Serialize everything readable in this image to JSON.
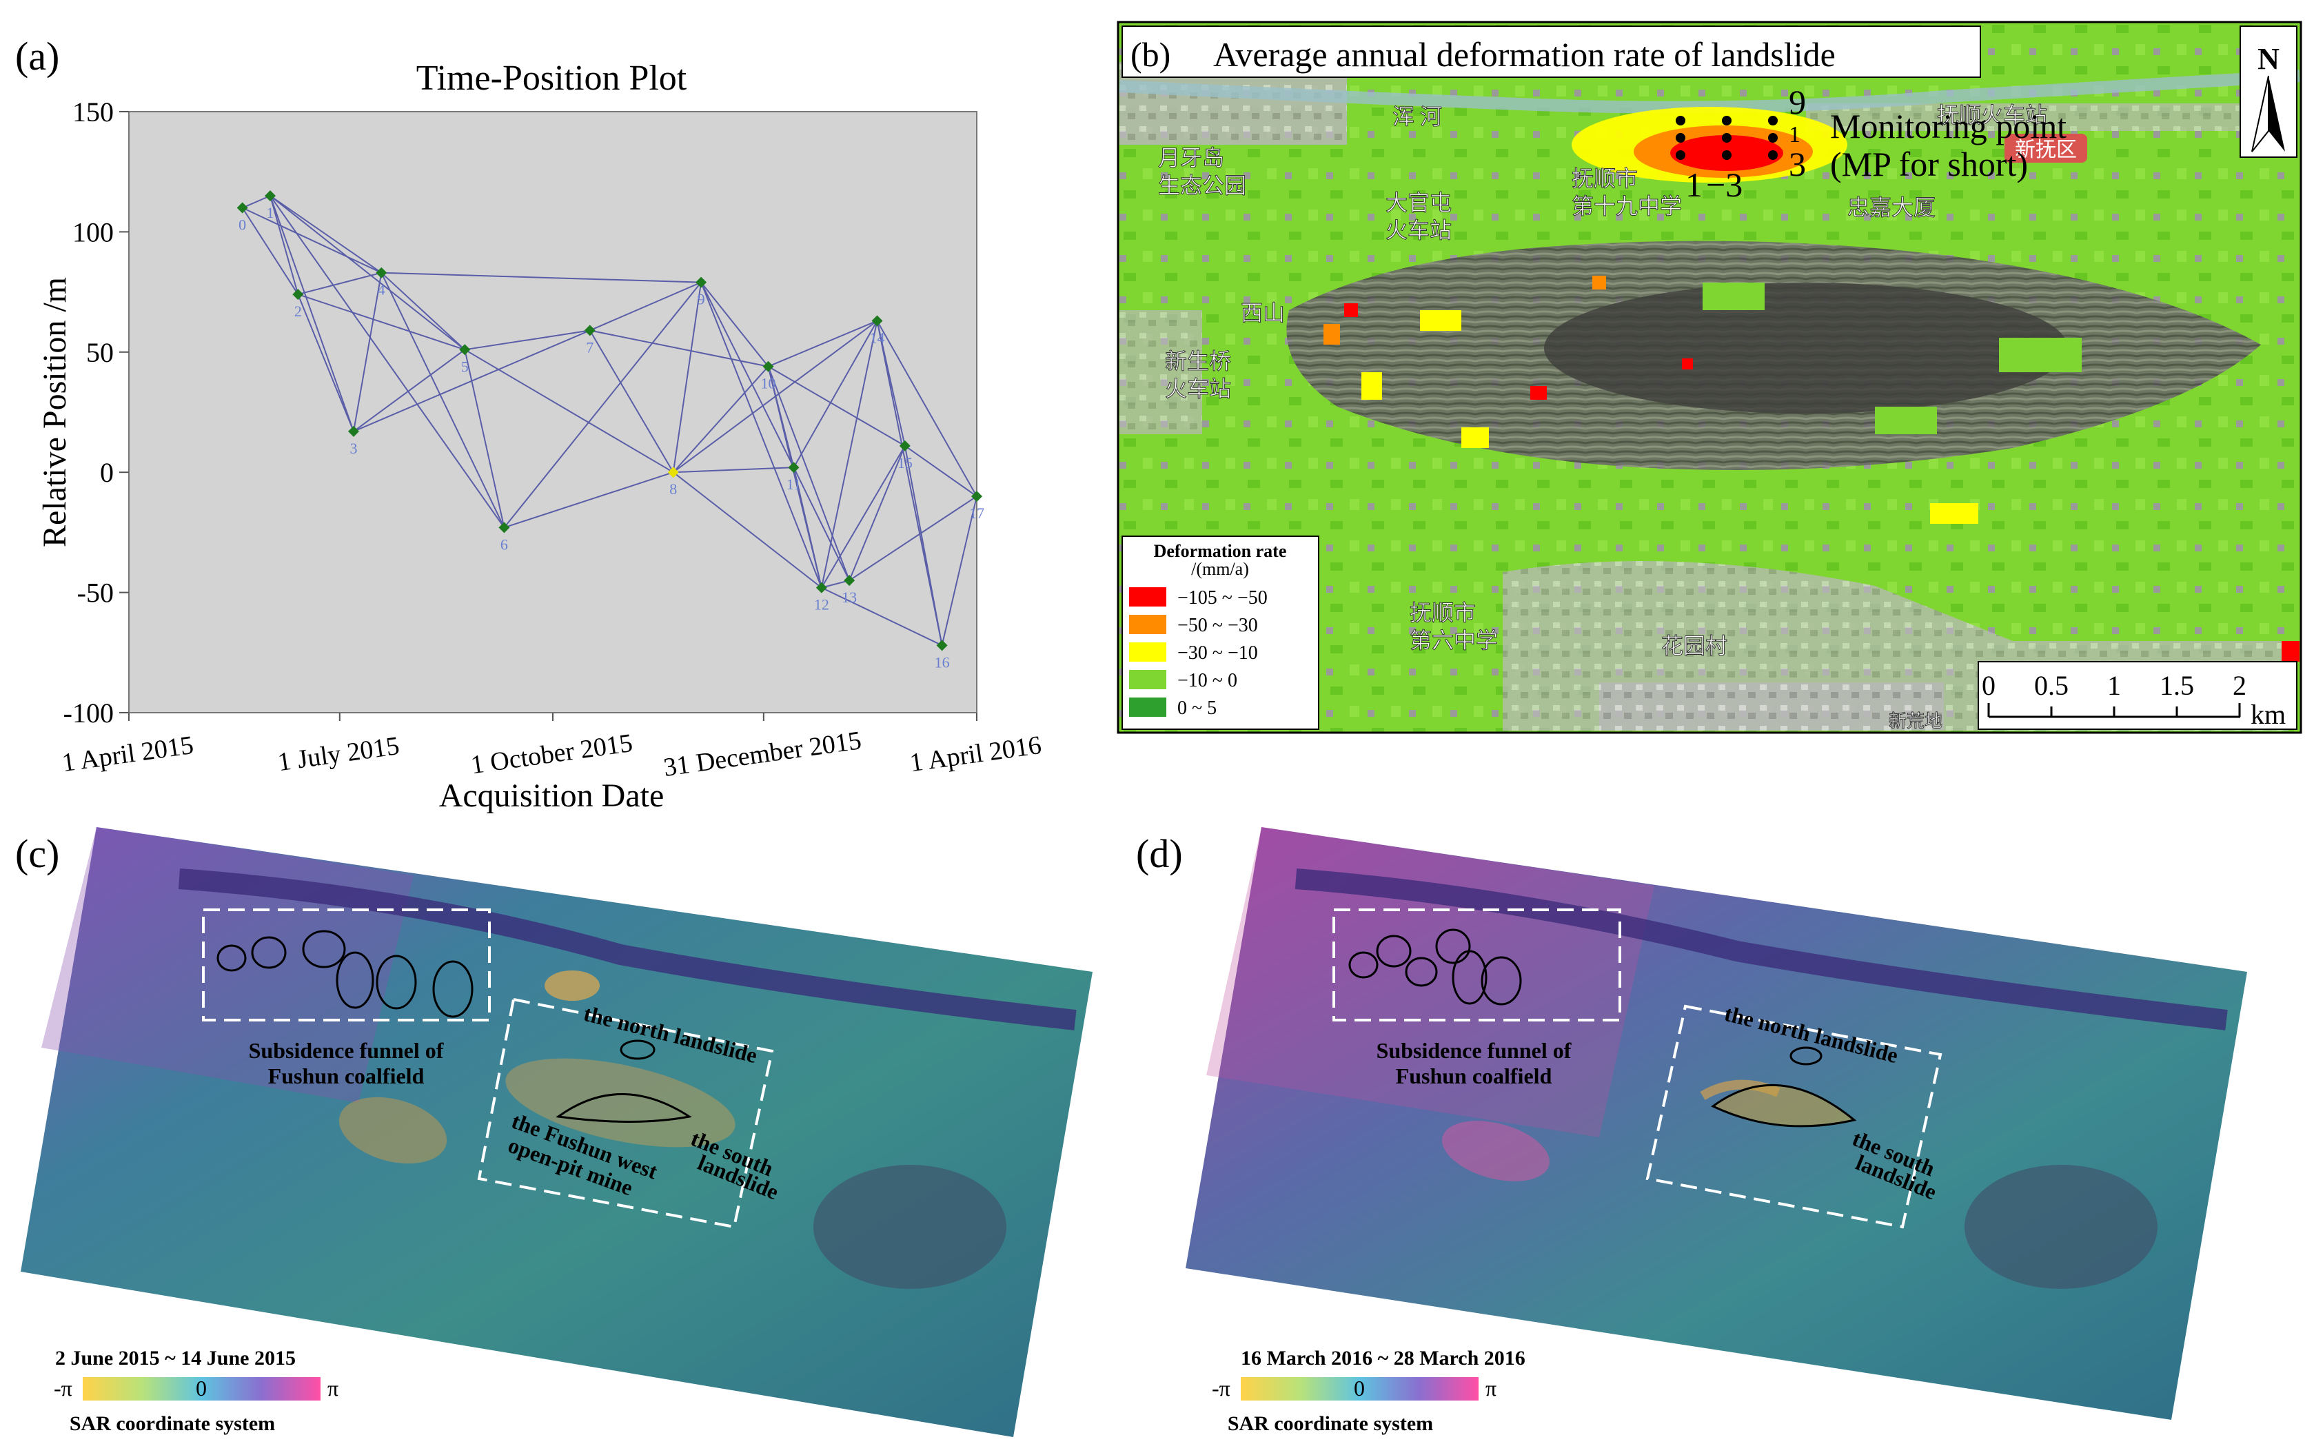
{
  "panels": {
    "a": {
      "letter": "(a)",
      "chart_data": {
        "type": "scatter",
        "title": "Time-Position Plot",
        "xlabel": "Acquisition Date",
        "ylabel": "Relative Position /m",
        "ylim": [
          -100,
          150
        ],
        "yticks": [
          -100,
          -50,
          0,
          50,
          100,
          150
        ],
        "xlim": [
          "2015-04-01",
          "2016-04-01"
        ],
        "xticks": [
          "1 April 2015",
          "1 July 2015",
          "1 October 2015",
          "31 December 2015",
          "1 April 2016"
        ],
        "grid": false,
        "points": [
          {
            "id": "0",
            "date": "2015-05-20",
            "y": 110
          },
          {
            "id": "1",
            "date": "2015-06-01",
            "y": 115
          },
          {
            "id": "2",
            "date": "2015-06-13",
            "y": 74
          },
          {
            "id": "3",
            "date": "2015-07-07",
            "y": 17
          },
          {
            "id": "4",
            "date": "2015-07-19",
            "y": 83
          },
          {
            "id": "5",
            "date": "2015-08-24",
            "y": 51
          },
          {
            "id": "6",
            "date": "2015-09-10",
            "y": -23
          },
          {
            "id": "7",
            "date": "2015-10-17",
            "y": 59
          },
          {
            "id": "8",
            "date": "2015-11-22",
            "y": 0,
            "reference": true
          },
          {
            "id": "9",
            "date": "2015-12-04",
            "y": 79
          },
          {
            "id": "10",
            "date": "2016-01-02",
            "y": 44
          },
          {
            "id": "11",
            "date": "2016-01-13",
            "y": 2
          },
          {
            "id": "12",
            "date": "2016-01-25",
            "y": -48
          },
          {
            "id": "13",
            "date": "2016-02-06",
            "y": -45
          },
          {
            "id": "14",
            "date": "2016-02-18",
            "y": 63
          },
          {
            "id": "15",
            "date": "2016-03-01",
            "y": 11
          },
          {
            "id": "16",
            "date": "2016-03-17",
            "y": -72
          },
          {
            "id": "17",
            "date": "2016-04-01",
            "y": -10
          }
        ],
        "edges": [
          [
            0,
            1
          ],
          [
            0,
            2
          ],
          [
            0,
            4
          ],
          [
            1,
            2
          ],
          [
            1,
            3
          ],
          [
            1,
            4
          ],
          [
            1,
            5
          ],
          [
            1,
            6
          ],
          [
            2,
            3
          ],
          [
            2,
            4
          ],
          [
            2,
            5
          ],
          [
            3,
            4
          ],
          [
            3,
            5
          ],
          [
            3,
            7
          ],
          [
            4,
            5
          ],
          [
            4,
            6
          ],
          [
            4,
            9
          ],
          [
            5,
            6
          ],
          [
            5,
            7
          ],
          [
            5,
            8
          ],
          [
            6,
            8
          ],
          [
            6,
            9
          ],
          [
            7,
            8
          ],
          [
            7,
            9
          ],
          [
            7,
            10
          ],
          [
            8,
            9
          ],
          [
            8,
            10
          ],
          [
            8,
            11
          ],
          [
            8,
            12
          ],
          [
            8,
            14
          ],
          [
            9,
            10
          ],
          [
            9,
            11
          ],
          [
            9,
            12
          ],
          [
            10,
            11
          ],
          [
            10,
            12
          ],
          [
            10,
            13
          ],
          [
            10,
            14
          ],
          [
            10,
            15
          ],
          [
            11,
            12
          ],
          [
            11,
            13
          ],
          [
            11,
            14
          ],
          [
            12,
            13
          ],
          [
            12,
            14
          ],
          [
            12,
            16
          ],
          [
            13,
            15
          ],
          [
            13,
            17
          ],
          [
            14,
            15
          ],
          [
            14,
            16
          ],
          [
            14,
            17
          ],
          [
            15,
            16
          ],
          [
            15,
            17
          ],
          [
            16,
            17
          ],
          [
            12,
            15
          ]
        ],
        "colors": {
          "edge": "#5a5ea8",
          "point": "#1e7a1e",
          "reference": "#e8e000",
          "label": "#6a7fd0",
          "background": "#d3d3d3"
        }
      }
    },
    "b": {
      "letter": "(b)",
      "title": "Average annual deformation rate of landslide",
      "north": "N",
      "mp_top": "9",
      "mp_mid": "1",
      "mp_bottom": "3",
      "mp_left": "1",
      "mp_range": "−3",
      "monitoring_line1": "Monitoring point",
      "monitoring_line2": "(MP for short)",
      "legend_title_1": "Deformation rate",
      "legend_title_2": "/(mm/a)",
      "legend": [
        {
          "label": "−105 ~ −50",
          "color": "#ff0000"
        },
        {
          "label": "−50 ~ −30",
          "color": "#ff8c00"
        },
        {
          "label": "−30 ~ −10",
          "color": "#ffff00"
        },
        {
          "label": "−10 ~ 0",
          "color": "#7fd630"
        },
        {
          "label": "0 ~ 5",
          "color": "#2ea02e"
        }
      ],
      "scale_ticks": [
        "0",
        "0.5",
        "1",
        "1.5",
        "2"
      ],
      "scale_unit": "km",
      "map_labels": {
        "river": "浑 河",
        "station_ne": "抚顺火车站",
        "district": "新抚区",
        "park1": "月牙岛",
        "park2": "生态公园",
        "station_w1": "大官屯",
        "station_w2": "火车站",
        "school1": "抚顺市",
        "school2": "第十九中学",
        "building": "忠嘉大厦",
        "hill": "西山",
        "station_sw1": "新生桥",
        "station_sw2": "火车站",
        "school3": "抚顺市",
        "school4": "第六中学",
        "village": "花园村",
        "corner": "新荒地"
      }
    },
    "c": {
      "letter": "(c)",
      "label_funnel_1": "Subsidence funnel of",
      "label_funnel_2": "Fushun coalfield",
      "label_north": "the north landslide",
      "label_south_1": "the south",
      "label_south_2": "landslide",
      "label_mine_1": "the Fushun west",
      "label_mine_2": "open-pit mine",
      "date_range": "2 June 2015 ~ 14 June 2015",
      "neg_pi": "-π",
      "zero": "0",
      "pos_pi": "π",
      "coord": "SAR coordinate system"
    },
    "d": {
      "letter": "(d)",
      "label_funnel_1": "Subsidence funnel of",
      "label_funnel_2": "Fushun coalfield",
      "label_north": "the north landslide",
      "label_south_1": "the south",
      "label_south_2": "landslide",
      "date_range": "16 March 2016 ~ 28 March 2016",
      "neg_pi": "-π",
      "zero": "0",
      "pos_pi": "π",
      "coord": "SAR coordinate system"
    }
  }
}
